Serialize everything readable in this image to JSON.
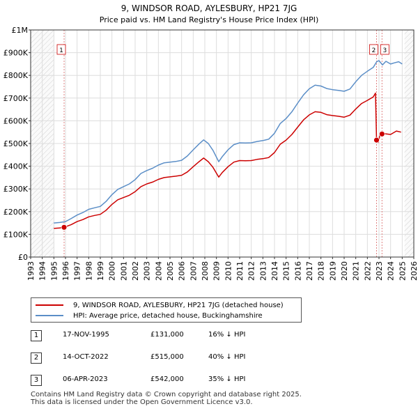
{
  "chart_data": {
    "type": "line",
    "title": "9, WINDSOR ROAD, AYLESBURY, HP21 7JG",
    "subtitle": "Price paid vs. HM Land Registry's House Price Index (HPI)",
    "xlim": [
      1993,
      2026
    ],
    "ylim": [
      0,
      1000000
    ],
    "x_ticks": [
      "1993",
      "1994",
      "1995",
      "1996",
      "1997",
      "1998",
      "1999",
      "2000",
      "2001",
      "2002",
      "2003",
      "2004",
      "2005",
      "2006",
      "2007",
      "2008",
      "2009",
      "2010",
      "2011",
      "2012",
      "2013",
      "2014",
      "2015",
      "2016",
      "2017",
      "2018",
      "2019",
      "2020",
      "2021",
      "2022",
      "2023",
      "2024",
      "2025",
      "2026"
    ],
    "y_ticks": [
      {
        "value": 0,
        "label": "£0"
      },
      {
        "value": 100000,
        "label": "£100K"
      },
      {
        "value": 200000,
        "label": "£200K"
      },
      {
        "value": 300000,
        "label": "£300K"
      },
      {
        "value": 400000,
        "label": "£400K"
      },
      {
        "value": 500000,
        "label": "£500K"
      },
      {
        "value": 600000,
        "label": "£600K"
      },
      {
        "value": 700000,
        "label": "£700K"
      },
      {
        "value": 800000,
        "label": "£800K"
      },
      {
        "value": 900000,
        "label": "£900K"
      },
      {
        "value": 1000000,
        "label": "£1M"
      }
    ],
    "hatch_regions": [
      [
        1993,
        1995.0
      ],
      [
        2025.2,
        2026
      ]
    ],
    "series": [
      {
        "name": "9, WINDSOR ROAD, AYLESBURY, HP21 7JG (detached house)",
        "color": "#cc0000",
        "x": [
          1995.0,
          1995.5,
          1995.88,
          1996.5,
          1997.0,
          1997.5,
          1998.0,
          1998.5,
          1999.0,
          1999.5,
          2000.0,
          2000.5,
          2001.0,
          2001.5,
          2002.0,
          2002.5,
          2003.0,
          2003.5,
          2004.0,
          2004.5,
          2005.0,
          2005.5,
          2006.0,
          2006.5,
          2007.0,
          2007.5,
          2007.9,
          2008.3,
          2008.7,
          2009.2,
          2009.5,
          2010.0,
          2010.5,
          2011.0,
          2011.5,
          2012.0,
          2012.5,
          2013.0,
          2013.5,
          2014.0,
          2014.5,
          2015.0,
          2015.5,
          2016.0,
          2016.5,
          2017.0,
          2017.5,
          2018.0,
          2018.5,
          2019.0,
          2019.5,
          2020.0,
          2020.5,
          2021.0,
          2021.5,
          2022.0,
          2022.5,
          2022.7,
          2022.79,
          2022.95,
          2023.1,
          2023.26,
          2023.5,
          2024.0,
          2024.5,
          2024.9
        ],
        "values": [
          126000,
          128000,
          131000,
          143000,
          156000,
          165000,
          177000,
          183000,
          188000,
          206000,
          232000,
          252000,
          262000,
          272000,
          288000,
          310000,
          322000,
          330000,
          342000,
          350000,
          353000,
          356000,
          360000,
          375000,
          398000,
          420000,
          436000,
          420000,
          395000,
          352000,
          372000,
          398000,
          418000,
          425000,
          424000,
          425000,
          430000,
          433000,
          438000,
          460000,
          497000,
          515000,
          540000,
          572000,
          604000,
          626000,
          640000,
          637000,
          627000,
          623000,
          620000,
          616000,
          625000,
          652000,
          676000,
          690000,
          705000,
          722000,
          515000,
          505000,
          545000,
          542000,
          543000,
          540000,
          555000,
          550000
        ]
      },
      {
        "name": "HPI: Average price, detached house, Buckinghamshire",
        "color": "#5b8ec7",
        "x": [
          1995.0,
          1995.5,
          1996.0,
          1996.5,
          1997.0,
          1997.5,
          1998.0,
          1998.5,
          1999.0,
          1999.5,
          2000.0,
          2000.5,
          2001.0,
          2001.5,
          2002.0,
          2002.5,
          2003.0,
          2003.5,
          2004.0,
          2004.5,
          2005.0,
          2005.5,
          2006.0,
          2006.5,
          2007.0,
          2007.5,
          2007.9,
          2008.3,
          2008.7,
          2009.2,
          2009.5,
          2010.0,
          2010.5,
          2011.0,
          2011.5,
          2012.0,
          2012.5,
          2013.0,
          2013.5,
          2014.0,
          2014.5,
          2015.0,
          2015.5,
          2016.0,
          2016.5,
          2017.0,
          2017.5,
          2018.0,
          2018.5,
          2019.0,
          2019.5,
          2020.0,
          2020.5,
          2021.0,
          2021.5,
          2022.0,
          2022.5,
          2022.8,
          2023.0,
          2023.3,
          2023.6,
          2024.0,
          2024.3,
          2024.7,
          2025.0
        ],
        "values": [
          150000,
          152000,
          156000,
          170000,
          185000,
          196000,
          210000,
          217000,
          223000,
          245000,
          275000,
          298000,
          310000,
          322000,
          341000,
          368000,
          381000,
          391000,
          405000,
          415000,
          418000,
          421000,
          426000,
          445000,
          472000,
          498000,
          516000,
          500000,
          470000,
          420000,
          442000,
          472000,
          495000,
          503000,
          502000,
          503000,
          509000,
          513000,
          519000,
          545000,
          588000,
          610000,
          640000,
          678000,
          714000,
          741000,
          757000,
          753000,
          742000,
          737000,
          734000,
          730000,
          740000,
          772000,
          800000,
          818000,
          835000,
          860000,
          865000,
          846000,
          862000,
          850000,
          855000,
          860000,
          850000
        ]
      }
    ],
    "sales": [
      {
        "label": "1",
        "x": 1995.88,
        "value": 131000
      },
      {
        "label": "2",
        "x": 2022.79,
        "value": 515000
      },
      {
        "label": "3",
        "x": 2023.26,
        "value": 542000
      }
    ]
  },
  "legend": {
    "entries": [
      {
        "label": "9, WINDSOR ROAD, AYLESBURY, HP21 7JG (detached house)",
        "color": "#cc0000"
      },
      {
        "label": "HPI: Average price, detached house, Buckinghamshire",
        "color": "#5b8ec7"
      }
    ]
  },
  "sales_table": [
    {
      "num": "1",
      "date": "17-NOV-1995",
      "price": "£131,000",
      "hpi": "16% ↓ HPI"
    },
    {
      "num": "2",
      "date": "14-OCT-2022",
      "price": "£515,000",
      "hpi": "40% ↓ HPI"
    },
    {
      "num": "3",
      "date": "06-APR-2023",
      "price": "£542,000",
      "hpi": "35% ↓ HPI"
    }
  ],
  "footer": {
    "line1": "Contains HM Land Registry data © Crown copyright and database right 2025.",
    "line2": "This data is licensed under the Open Government Licence v3.0."
  }
}
